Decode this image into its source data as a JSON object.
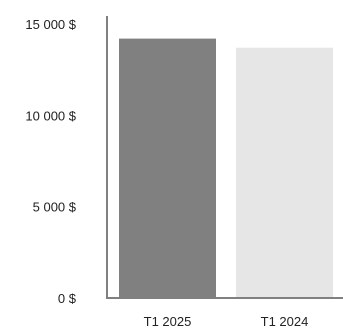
{
  "chart_data": {
    "type": "bar",
    "categories": [
      "T1 2025",
      "T1 2024"
    ],
    "values": [
      14200,
      13700
    ],
    "ylim": [
      0,
      15000
    ],
    "yticks": [
      {
        "value": 0,
        "label": "0 $"
      },
      {
        "value": 5000,
        "label": "5 000 $"
      },
      {
        "value": 10000,
        "label": "10 000 $"
      },
      {
        "value": 15000,
        "label": "15 000 $"
      }
    ],
    "colors": [
      "#808080",
      "#e6e6e6"
    ],
    "axis_color": "#808080",
    "grid": false,
    "legend": "none"
  }
}
